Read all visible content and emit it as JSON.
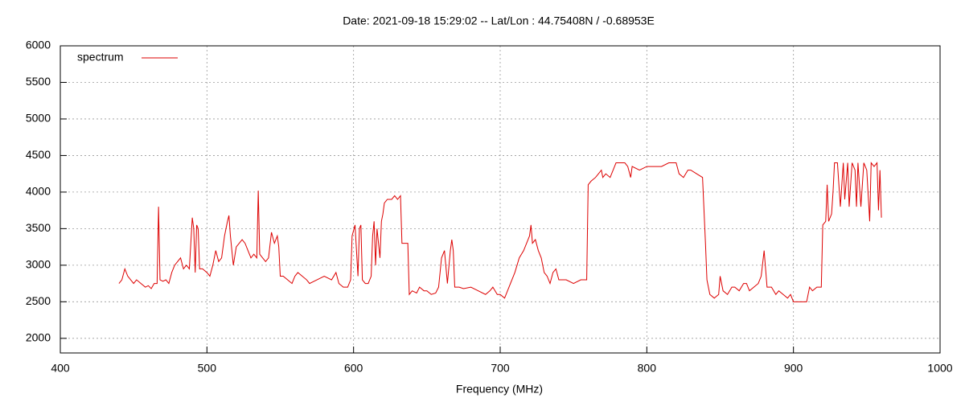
{
  "chart_data": {
    "type": "line",
    "title": "Date: 2021-09-18 15:29:02  --  Lat/Lon : 44.75408N / -0.68953E",
    "x_label": "Frequency (MHz)",
    "xlim": [
      400,
      1000
    ],
    "xticks": [
      400,
      500,
      600,
      700,
      800,
      900,
      1000
    ],
    "ylim": [
      1800,
      6000
    ],
    "yticks": [
      2000,
      2500,
      3000,
      3500,
      4000,
      4500,
      5000,
      5500,
      6000
    ],
    "grid": true,
    "legend": "upper-left",
    "x": [
      440,
      442,
      444,
      446,
      448,
      450,
      452,
      455,
      458,
      460,
      462,
      464,
      466,
      467,
      468,
      470,
      472,
      474,
      476,
      478,
      480,
      482,
      484,
      486,
      488,
      489,
      490,
      491,
      492,
      493,
      494,
      495,
      497,
      500,
      502,
      504,
      506,
      508,
      510,
      512,
      514,
      515,
      516,
      518,
      520,
      522,
      524,
      526,
      528,
      530,
      532,
      534,
      535,
      536,
      538,
      540,
      542,
      544,
      546,
      548,
      549,
      550,
      552,
      555,
      558,
      560,
      562,
      565,
      568,
      570,
      575,
      580,
      585,
      588,
      590,
      593,
      596,
      598,
      599,
      601,
      603,
      604,
      605,
      606,
      608,
      610,
      612,
      613,
      614,
      615,
      616,
      618,
      619,
      620,
      621,
      623,
      626,
      628,
      630,
      632,
      633,
      635,
      637,
      638,
      640,
      643,
      645,
      648,
      650,
      653,
      656,
      658,
      660,
      662,
      664,
      666,
      667,
      668,
      669,
      672,
      675,
      680,
      685,
      690,
      693,
      695,
      698,
      700,
      703,
      705,
      708,
      710,
      713,
      716,
      718,
      720,
      721,
      722,
      724,
      726,
      728,
      730,
      732,
      734,
      736,
      738,
      740,
      745,
      750,
      755,
      759,
      760,
      762,
      765,
      767,
      769,
      770,
      772,
      775,
      777,
      779,
      782,
      785,
      787,
      789,
      790,
      795,
      800,
      805,
      810,
      815,
      820,
      822,
      825,
      828,
      830,
      834,
      838,
      840,
      841,
      843,
      846,
      849,
      850,
      852,
      855,
      858,
      860,
      863,
      866,
      868,
      870,
      873,
      876,
      878,
      880,
      882,
      885,
      888,
      890,
      893,
      896,
      898,
      900,
      903,
      906,
      909,
      911,
      913,
      916,
      919,
      920,
      922,
      923,
      924,
      926,
      927,
      928,
      930,
      932,
      934,
      935,
      937,
      938,
      940,
      942,
      943,
      944,
      946,
      948,
      950,
      952,
      953,
      955,
      957,
      958,
      959,
      960
    ],
    "series": [
      {
        "name": "spectrum",
        "color": "#dd0000",
        "values": [
          2750,
          2800,
          2950,
          2850,
          2800,
          2750,
          2800,
          2750,
          2700,
          2720,
          2680,
          2750,
          2750,
          3800,
          2800,
          2780,
          2800,
          2750,
          2900,
          3000,
          3050,
          3100,
          2950,
          3000,
          2950,
          3300,
          3650,
          3500,
          2900,
          3550,
          3500,
          2950,
          2950,
          2900,
          2850,
          3000,
          3200,
          3050,
          3100,
          3400,
          3600,
          3680,
          3400,
          3000,
          3250,
          3300,
          3350,
          3300,
          3200,
          3100,
          3150,
          3100,
          4020,
          3150,
          3100,
          3050,
          3100,
          3450,
          3300,
          3400,
          3250,
          2850,
          2850,
          2800,
          2750,
          2850,
          2900,
          2850,
          2800,
          2750,
          2800,
          2850,
          2800,
          2900,
          2750,
          2700,
          2700,
          2800,
          3400,
          3550,
          2850,
          3500,
          3550,
          2800,
          2750,
          2750,
          2850,
          3400,
          3600,
          3000,
          3500,
          3100,
          3600,
          3700,
          3850,
          3900,
          3900,
          3950,
          3900,
          3950,
          3300,
          3300,
          3300,
          2600,
          2650,
          2620,
          2700,
          2650,
          2650,
          2600,
          2620,
          2700,
          3100,
          3200,
          2750,
          3200,
          3350,
          3200,
          2700,
          2700,
          2680,
          2700,
          2650,
          2600,
          2650,
          2700,
          2600,
          2600,
          2550,
          2650,
          2800,
          2900,
          3100,
          3200,
          3300,
          3400,
          3550,
          3300,
          3350,
          3200,
          3100,
          2900,
          2850,
          2750,
          2900,
          2950,
          2800,
          2800,
          2750,
          2800,
          2800,
          4100,
          4150,
          4200,
          4250,
          4300,
          4200,
          4250,
          4200,
          4300,
          4400,
          4400,
          4400,
          4350,
          4200,
          4350,
          4300,
          4350,
          4350,
          4350,
          4400,
          4400,
          4250,
          4200,
          4300,
          4300,
          4250,
          4200,
          3300,
          2800,
          2600,
          2550,
          2600,
          2850,
          2650,
          2600,
          2700,
          2700,
          2650,
          2750,
          2750,
          2650,
          2700,
          2750,
          2850,
          3200,
          2700,
          2700,
          2600,
          2650,
          2600,
          2550,
          2600,
          2500,
          2500,
          2500,
          2500,
          2700,
          2650,
          2700,
          2700,
          3550,
          3600,
          4100,
          3600,
          3700,
          4000,
          4400,
          4400,
          3800,
          4400,
          3900,
          4400,
          3800,
          4400,
          4300,
          3800,
          4400,
          3800,
          4400,
          4300,
          3600,
          4400,
          4350,
          4400,
          3750,
          4300,
          3650
        ]
      }
    ]
  }
}
